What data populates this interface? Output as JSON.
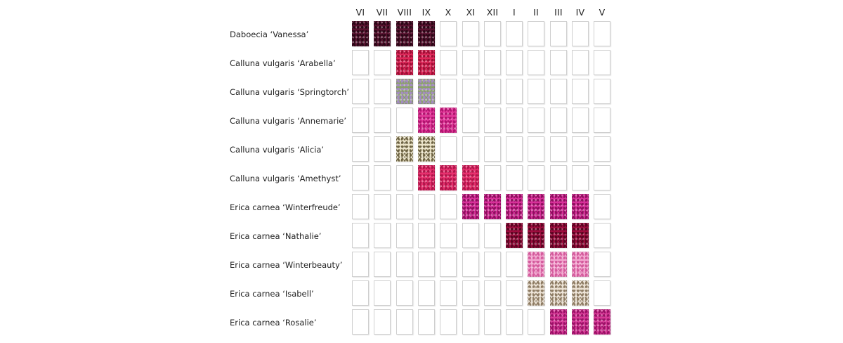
{
  "chart_data": {
    "type": "table",
    "months": [
      "VI",
      "VII",
      "VIII",
      "IX",
      "X",
      "XI",
      "XII",
      "I",
      "II",
      "III",
      "IV",
      "V"
    ],
    "plants": [
      {
        "name": "Daboecia ‘Vanessa’",
        "color": "#5a1230",
        "accent": "#2a0716",
        "bloom": [
          "VI",
          "VII",
          "VIII",
          "IX"
        ]
      },
      {
        "name": "Calluna vulgaris ‘Arabella’",
        "color": "#e0285a",
        "accent": "#9e0f35",
        "bloom": [
          "VIII",
          "IX"
        ]
      },
      {
        "name": "Calluna vulgaris ‘Springtorch’",
        "color": "#8aa06a",
        "accent": "#a58bc4",
        "bloom": [
          "VIII",
          "IX"
        ]
      },
      {
        "name": "Calluna vulgaris ‘Annemarie’",
        "color": "#e53a9c",
        "accent": "#b0156e",
        "bloom": [
          "IX",
          "X"
        ]
      },
      {
        "name": "Calluna vulgaris ‘Alicia’",
        "color": "#ece4c8",
        "accent": "#6e6444",
        "bloom": [
          "VIII",
          "IX"
        ]
      },
      {
        "name": "Calluna vulgaris ‘Amethyst’",
        "color": "#e8306e",
        "accent": "#b0154a",
        "bloom": [
          "IX",
          "X",
          "XI"
        ]
      },
      {
        "name": "Erica carnea ‘Winterfreude’",
        "color": "#d8309a",
        "accent": "#8e0e5e",
        "bloom": [
          "XI",
          "XII",
          "I",
          "II",
          "III",
          "IV"
        ]
      },
      {
        "name": "Erica carnea ‘Nathalie’",
        "color": "#9e0c3e",
        "accent": "#5a0420",
        "bloom": [
          "I",
          "II",
          "III",
          "IV"
        ]
      },
      {
        "name": "Erica carnea ‘Winterbeauty’",
        "color": "#f2a6cf",
        "accent": "#d45a9c",
        "bloom": [
          "II",
          "III",
          "IV"
        ]
      },
      {
        "name": "Erica carnea ‘Isabell’",
        "color": "#ece2d4",
        "accent": "#8e7c64",
        "bloom": [
          "II",
          "III",
          "IV"
        ]
      },
      {
        "name": "Erica carnea ‘Rosalie’",
        "color": "#d83a98",
        "accent": "#9a1266",
        "bloom": [
          "III",
          "IV",
          "V"
        ]
      }
    ]
  }
}
